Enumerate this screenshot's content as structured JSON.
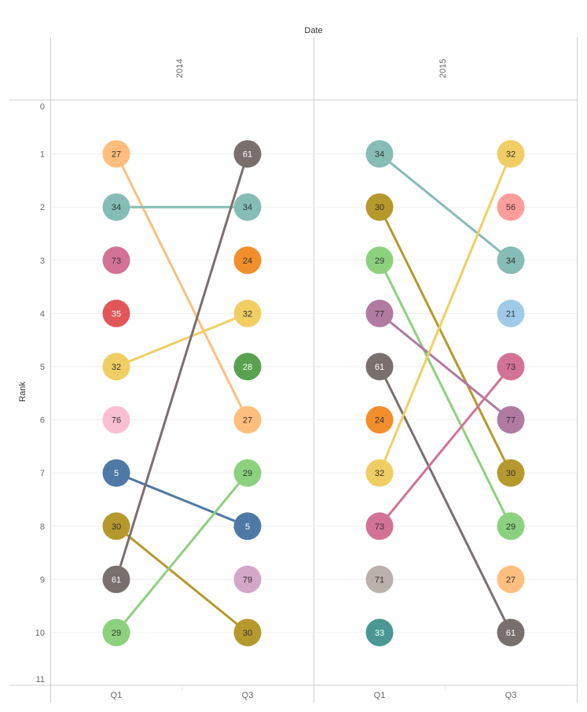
{
  "chart_data": {
    "type": "line",
    "title": "Date",
    "ylabel": "Rank",
    "y_ticks": [
      "0",
      "1",
      "2",
      "3",
      "4",
      "5",
      "6",
      "7",
      "8",
      "9",
      "10",
      "11"
    ],
    "ylim": [
      0,
      11
    ],
    "y_reversed": true,
    "panels": [
      {
        "year": "2014",
        "periods": [
          "Q1",
          "Q3"
        ],
        "points": [
          {
            "period": 0,
            "rank": 1,
            "label": "27",
            "color": "#FFBE7D"
          },
          {
            "period": 0,
            "rank": 2,
            "label": "34",
            "color": "#86BCB6"
          },
          {
            "period": 0,
            "rank": 3,
            "label": "73",
            "color": "#D37295"
          },
          {
            "period": 0,
            "rank": 4,
            "label": "35",
            "color": "#E15759"
          },
          {
            "period": 0,
            "rank": 5,
            "label": "32",
            "color": "#F1CE63"
          },
          {
            "period": 0,
            "rank": 6,
            "label": "76",
            "color": "#FABFD2"
          },
          {
            "period": 0,
            "rank": 7,
            "label": "5",
            "color": "#4E79A7"
          },
          {
            "period": 0,
            "rank": 8,
            "label": "30",
            "color": "#B6992D"
          },
          {
            "period": 0,
            "rank": 9,
            "label": "61",
            "color": "#79706E"
          },
          {
            "period": 0,
            "rank": 10,
            "label": "29",
            "color": "#8CD17D"
          },
          {
            "period": 1,
            "rank": 1,
            "label": "61",
            "color": "#79706E"
          },
          {
            "period": 1,
            "rank": 2,
            "label": "34",
            "color": "#86BCB6"
          },
          {
            "period": 1,
            "rank": 3,
            "label": "24",
            "color": "#F28E2B"
          },
          {
            "period": 1,
            "rank": 4,
            "label": "32",
            "color": "#F1CE63"
          },
          {
            "period": 1,
            "rank": 5,
            "label": "28",
            "color": "#59A14F"
          },
          {
            "period": 1,
            "rank": 6,
            "label": "27",
            "color": "#FFBE7D"
          },
          {
            "period": 1,
            "rank": 7,
            "label": "29",
            "color": "#8CD17D"
          },
          {
            "period": 1,
            "rank": 8,
            "label": "5",
            "color": "#4E79A7"
          },
          {
            "period": 1,
            "rank": 9,
            "label": "79",
            "color": "#D4A6C8"
          },
          {
            "period": 1,
            "rank": 10,
            "label": "30",
            "color": "#B6992D"
          }
        ],
        "lines": [
          {
            "from": 1,
            "to": 6,
            "color": "#FFBE7D"
          },
          {
            "from": 2,
            "to": 2,
            "color": "#86BCB6"
          },
          {
            "from": 5,
            "to": 4,
            "color": "#F1CE63"
          },
          {
            "from": 7,
            "to": 8,
            "color": "#4E79A7"
          },
          {
            "from": 8,
            "to": 10,
            "color": "#B6992D"
          },
          {
            "from": 9,
            "to": 1,
            "color": "#79706E"
          },
          {
            "from": 10,
            "to": 7,
            "color": "#8CD17D"
          }
        ]
      },
      {
        "year": "2015",
        "periods": [
          "Q1",
          "Q3"
        ],
        "points": [
          {
            "period": 0,
            "rank": 1,
            "label": "34",
            "color": "#86BCB6"
          },
          {
            "period": 0,
            "rank": 2,
            "label": "30",
            "color": "#B6992D"
          },
          {
            "period": 0,
            "rank": 3,
            "label": "29",
            "color": "#8CD17D"
          },
          {
            "period": 0,
            "rank": 4,
            "label": "77",
            "color": "#B07AA1"
          },
          {
            "period": 0,
            "rank": 5,
            "label": "61",
            "color": "#79706E"
          },
          {
            "period": 0,
            "rank": 6,
            "label": "24",
            "color": "#F28E2B"
          },
          {
            "period": 0,
            "rank": 7,
            "label": "32",
            "color": "#F1CE63"
          },
          {
            "period": 0,
            "rank": 8,
            "label": "73",
            "color": "#D37295"
          },
          {
            "period": 0,
            "rank": 9,
            "label": "71",
            "color": "#BAB0AC"
          },
          {
            "period": 0,
            "rank": 10,
            "label": "33",
            "color": "#499894"
          },
          {
            "period": 1,
            "rank": 1,
            "label": "32",
            "color": "#F1CE63"
          },
          {
            "period": 1,
            "rank": 2,
            "label": "56",
            "color": "#FF9D9A"
          },
          {
            "period": 1,
            "rank": 3,
            "label": "34",
            "color": "#86BCB6"
          },
          {
            "period": 1,
            "rank": 4,
            "label": "21",
            "color": "#A0CBE8"
          },
          {
            "period": 1,
            "rank": 5,
            "label": "73",
            "color": "#D37295"
          },
          {
            "period": 1,
            "rank": 6,
            "label": "77",
            "color": "#B07AA1"
          },
          {
            "period": 1,
            "rank": 7,
            "label": "30",
            "color": "#B6992D"
          },
          {
            "period": 1,
            "rank": 8,
            "label": "29",
            "color": "#8CD17D"
          },
          {
            "period": 1,
            "rank": 9,
            "label": "27",
            "color": "#FFBE7D"
          },
          {
            "period": 1,
            "rank": 10,
            "label": "61",
            "color": "#79706E"
          }
        ],
        "lines": [
          {
            "from": 1,
            "to": 3,
            "color": "#86BCB6"
          },
          {
            "from": 2,
            "to": 7,
            "color": "#B6992D"
          },
          {
            "from": 3,
            "to": 8,
            "color": "#8CD17D"
          },
          {
            "from": 4,
            "to": 6,
            "color": "#B07AA1"
          },
          {
            "from": 5,
            "to": 10,
            "color": "#79706E"
          },
          {
            "from": 7,
            "to": 1,
            "color": "#F1CE63"
          },
          {
            "from": 8,
            "to": 5,
            "color": "#D37295"
          }
        ]
      }
    ]
  }
}
